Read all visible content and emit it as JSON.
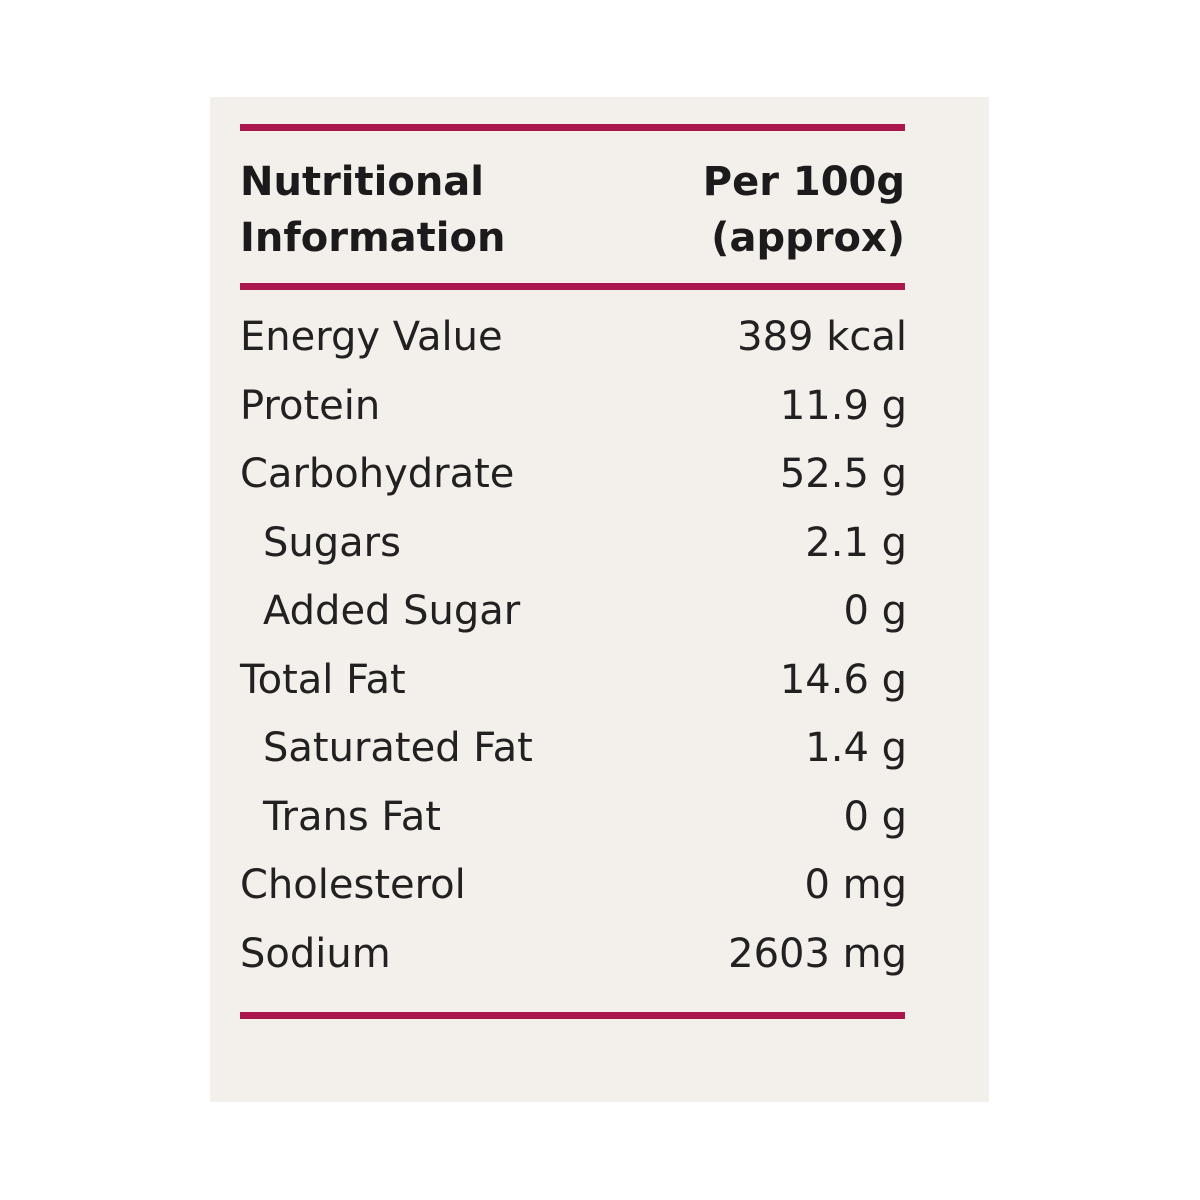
{
  "colors": {
    "background": "#f3efea",
    "rule": "#a9174d",
    "text": "#1c1a1a"
  },
  "header": {
    "left_line1": "Nutritional",
    "left_line2": "Information",
    "right_line1": "Per 100g",
    "right_line2": "(approx)"
  },
  "rows": [
    {
      "label": "Energy Value",
      "value": "389 kcal",
      "indent": false
    },
    {
      "label": "Protein",
      "value": "11.9 g",
      "indent": false
    },
    {
      "label": "Carbohydrate",
      "value": "52.5 g",
      "indent": false
    },
    {
      "label": "Sugars",
      "value": "2.1 g",
      "indent": true
    },
    {
      "label": "Added Sugar",
      "value": "0 g",
      "indent": true
    },
    {
      "label": "Total Fat",
      "value": "14.6 g",
      "indent": false
    },
    {
      "label": "Saturated Fat",
      "value": "1.4 g",
      "indent": true
    },
    {
      "label": "Trans Fat",
      "value": "0 g",
      "indent": true
    },
    {
      "label": "Cholesterol",
      "value": "0 mg",
      "indent": false
    },
    {
      "label": "Sodium",
      "value": "2603 mg",
      "indent": false
    }
  ]
}
